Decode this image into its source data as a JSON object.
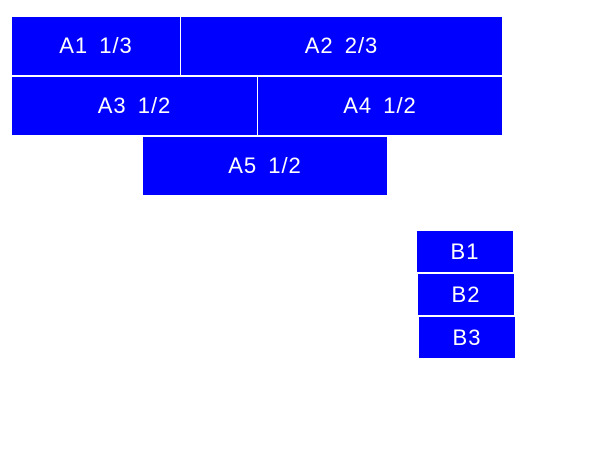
{
  "colors": {
    "box": "#0000ff",
    "text": "#ffffff",
    "background": "#ffffff"
  },
  "group_a": [
    {
      "label": "A1 1/3"
    },
    {
      "label": "A2 2/3"
    },
    {
      "label": "A3 1/2"
    },
    {
      "label": "A4 1/2"
    },
    {
      "label": "A5 1/2"
    }
  ],
  "group_b": [
    {
      "label": "B1"
    },
    {
      "label": "B2"
    },
    {
      "label": "B3"
    }
  ]
}
